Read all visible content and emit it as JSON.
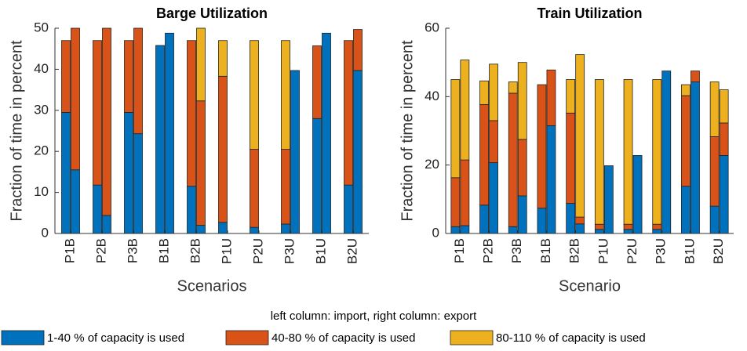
{
  "legend_title": "left column: import, right column: export",
  "legend": [
    {
      "name": "1-40 % of capacity is used",
      "color": "#0072bd"
    },
    {
      "name": "40-80 % of capacity is used",
      "color": "#d95319"
    },
    {
      "name": "80-110 % of capacity is used",
      "color": "#edb120"
    }
  ],
  "chart_data": [
    {
      "type": "stacked_bar_pairs",
      "title": "Barge Utilization",
      "xlabel": "Scenarios",
      "ylabel": "Fraction of time in percent",
      "categories": [
        "P1B",
        "P2B",
        "P3B",
        "B1B",
        "B2B",
        "P1U",
        "P2U",
        "P3U",
        "B1U",
        "B2U"
      ],
      "ylim": [
        0,
        50
      ],
      "yticks": [
        0,
        10,
        20,
        30,
        40,
        50
      ],
      "columns": [
        {
          "segments": [
            [
              29.5,
              11.8,
              29.5,
              45.8,
              11.5,
              2.7,
              1.5,
              2.3,
              28,
              11.8
            ],
            [
              17.5,
              35.2,
              17.5,
              0,
              35.5,
              35.6,
              19,
              18.2,
              17.7,
              35.2
            ],
            [
              0,
              0,
              0,
              0,
              0,
              8.7,
              26.5,
              26.5,
              0,
              0
            ]
          ]
        },
        {
          "segments": [
            [
              15.5,
              4.4,
              24.3,
              48.8,
              2,
              0,
              0,
              39.7,
              48.8,
              39.7
            ],
            [
              34.5,
              45.6,
              25.7,
              0,
              30.3,
              0,
              0,
              0,
              0,
              10
            ],
            [
              0,
              0,
              0,
              0,
              17.7,
              0,
              0,
              0,
              0,
              0
            ]
          ]
        }
      ]
    },
    {
      "type": "stacked_bar_pairs",
      "title": "Train Utilization",
      "xlabel": "Scenario",
      "ylabel": "Fraction of time in percent",
      "categories": [
        "P1B",
        "P2B",
        "P3B",
        "B1B",
        "B2B",
        "P1U",
        "P2U",
        "P3U",
        "B1U",
        "B2U"
      ],
      "ylim": [
        0,
        60
      ],
      "yticks": [
        0,
        20,
        40,
        60
      ],
      "columns": [
        {
          "segments": [
            [
              2,
              8.3,
              2,
              7.4,
              8.8,
              1.2,
              1.2,
              1.2,
              13.8,
              8
            ],
            [
              14.3,
              29.4,
              39,
              36.1,
              26.4,
              1.5,
              1.5,
              1.5,
              26.5,
              20.3
            ],
            [
              28.7,
              6.9,
              3.3,
              0,
              9.8,
              42.3,
              42.3,
              42.3,
              3.2,
              16
            ]
          ]
        },
        {
          "segments": [
            [
              2.3,
              20.7,
              11,
              31.5,
              2.8,
              19.8,
              22.8,
              47.5,
              44.3,
              22.8
            ],
            [
              19.2,
              12.3,
              16.5,
              16.3,
              2,
              0,
              0,
              0,
              3.2,
              9.5
            ],
            [
              29.2,
              16.5,
              22.5,
              0,
              47.5,
              0,
              0,
              0,
              0,
              9.7
            ]
          ]
        }
      ]
    }
  ]
}
